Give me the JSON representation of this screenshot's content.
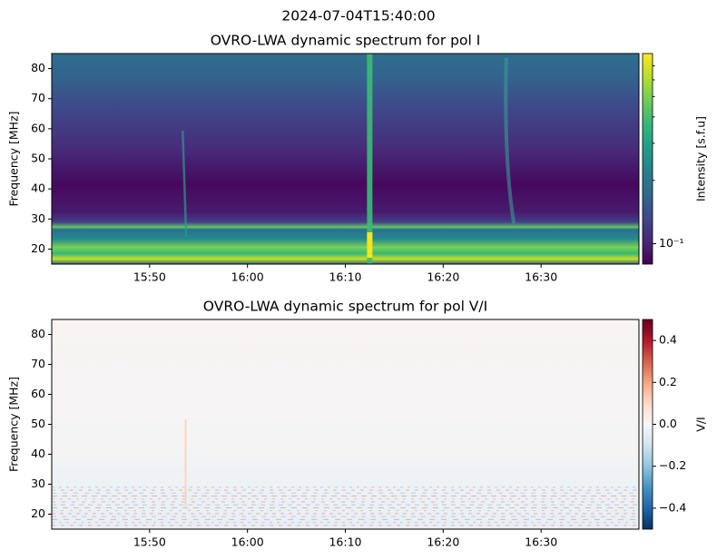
{
  "title": "2024-07-04T15:40:00",
  "chart_data": [
    {
      "type": "heatmap",
      "title": "OVRO-LWA dynamic spectrum for pol I",
      "ylabel": "Frequency [MHz]",
      "xlim": [
        "15:40",
        "16:40"
      ],
      "xticks": [
        "15:50",
        "16:00",
        "16:10",
        "16:20",
        "16:30"
      ],
      "ylim": [
        15,
        85
      ],
      "yticks": [
        20,
        30,
        40,
        50,
        60,
        70,
        80
      ],
      "colorbar": {
        "label": "Intensity [s.f.u]",
        "cmap": "viridis",
        "scale": "log",
        "lim": [
          0.08,
          0.8
        ],
        "ticks": [
          {
            "value": 0.1,
            "label": "10⁻¹"
          }
        ],
        "minor_ticks": [
          0.2,
          0.3,
          0.4,
          0.5,
          0.6,
          0.7
        ]
      }
    },
    {
      "type": "heatmap",
      "title": "OVRO-LWA dynamic spectrum for pol V/I",
      "ylabel": "Frequency [MHz]",
      "xlim": [
        "15:40",
        "16:40"
      ],
      "xticks": [
        "15:50",
        "16:00",
        "16:10",
        "16:20",
        "16:30"
      ],
      "ylim": [
        15,
        85
      ],
      "yticks": [
        20,
        30,
        40,
        50,
        60,
        70,
        80
      ],
      "colorbar": {
        "label": "V/I",
        "cmap": "RdBu_r",
        "scale": "linear",
        "lim": [
          -0.5,
          0.5
        ],
        "ticks": [
          {
            "value": -0.4,
            "label": "−0.4"
          },
          {
            "value": -0.2,
            "label": "−0.2"
          },
          {
            "value": 0,
            "label": "0.0"
          },
          0.2,
          0.4
        ]
      }
    }
  ]
}
